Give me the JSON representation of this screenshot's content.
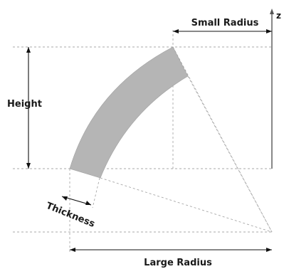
{
  "labels": {
    "small_radius": "Small Radius",
    "height": "Height",
    "thickness": "Thickness",
    "large_radius": "Large Radius",
    "axis": "z"
  },
  "colors": {
    "arc_fill": "#b5b5b5",
    "dimension_line": "#111111",
    "guide_line": "#a8a8a8",
    "axis_line": "#888888"
  }
}
